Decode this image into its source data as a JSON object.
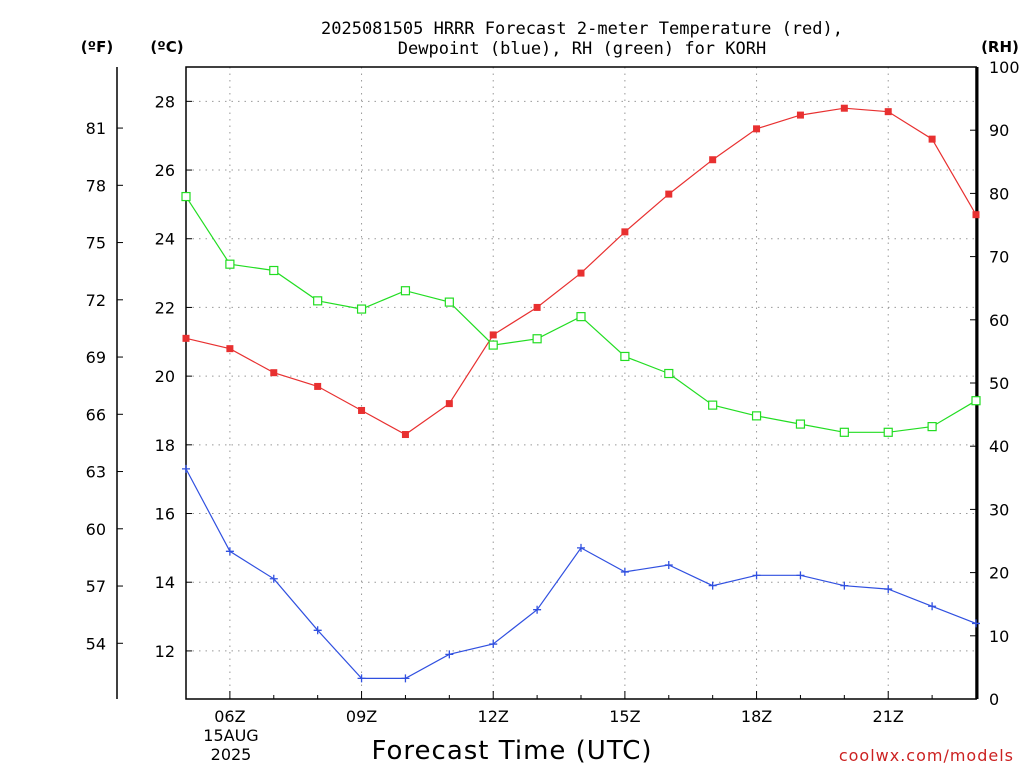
{
  "title_lines": [
    "2025081505 HRRR Forecast 2-meter Temperature (red),",
    "Dewpoint (blue), RH (green) for KORH"
  ],
  "units": {
    "fahrenheit": "(ºF)",
    "celsius": "(ºC)",
    "rh": "(RH)"
  },
  "x_date_line1": "15AUG",
  "x_date_line2": "2025",
  "credit": "coolwx.com/models",
  "chart_data": {
    "type": "line",
    "title": "2025081505 HRRR Forecast 2-meter Temperature (red), Dewpoint (blue), RH (green) for KORH",
    "xlabel": "Forecast Time (UTC)",
    "ylabel_left_outer": "(ºF)",
    "ylabel_left": "(ºC)",
    "ylabel_right": "(RH)",
    "x_hours": [
      5,
      6,
      7,
      8,
      9,
      10,
      11,
      12,
      13,
      14,
      15,
      16,
      17,
      18,
      19,
      20,
      21,
      22,
      23
    ],
    "xlim": [
      5,
      23
    ],
    "x_ticks": [
      6,
      9,
      12,
      15,
      18,
      21
    ],
    "x_tick_labels": [
      "06Z",
      "09Z",
      "12Z",
      "15Z",
      "18Z",
      "21Z"
    ],
    "ylim_c": [
      10.6,
      29.0
    ],
    "y_ticks_c": [
      12,
      14,
      16,
      18,
      20,
      22,
      24,
      26,
      28
    ],
    "y_ticks_f": [
      54,
      57,
      60,
      63,
      66,
      69,
      72,
      75,
      78,
      81
    ],
    "ylim_rh": [
      0,
      100
    ],
    "y_ticks_rh": [
      0,
      10,
      20,
      30,
      40,
      50,
      60,
      70,
      80,
      90,
      100
    ],
    "grid": true,
    "series": [
      {
        "name": "Temperature",
        "axis": "celsius",
        "color": "#e83030",
        "marker": "filled-square",
        "values": [
          21.1,
          20.8,
          20.1,
          19.7,
          19.0,
          18.3,
          19.2,
          21.2,
          22.0,
          23.0,
          24.2,
          25.3,
          26.3,
          27.2,
          27.6,
          27.8,
          27.7,
          26.9,
          24.7
        ]
      },
      {
        "name": "Dewpoint",
        "axis": "celsius",
        "color": "#3050e0",
        "marker": "plus",
        "values": [
          17.3,
          14.9,
          14.1,
          12.6,
          11.2,
          11.2,
          11.9,
          12.2,
          13.2,
          15.0,
          14.3,
          14.5,
          13.9,
          14.2,
          14.2,
          13.9,
          13.8,
          13.3,
          12.8
        ]
      },
      {
        "name": "RH",
        "axis": "rh",
        "color": "#22dd22",
        "marker": "open-square",
        "values": [
          79.5,
          68.8,
          67.8,
          63.0,
          61.7,
          64.6,
          62.8,
          56.0,
          57.0,
          60.5,
          54.2,
          51.5,
          46.5,
          44.8,
          43.5,
          42.2,
          42.2,
          43.1,
          47.2
        ]
      }
    ]
  }
}
